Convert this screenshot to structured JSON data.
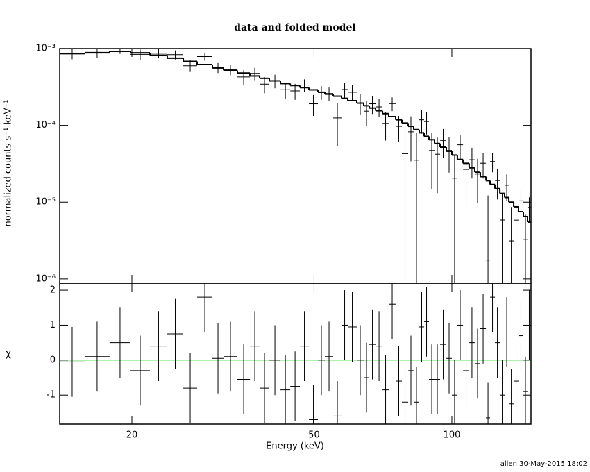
{
  "chart_data": {
    "type": "errorbar",
    "title": "data and folded model",
    "xlabel": "Energy (keV)",
    "footer": "allen 30-May-2015 18:02",
    "xscale": "log",
    "xlim": [
      13.91,
      148.9
    ],
    "xticks": [
      20,
      50,
      100
    ],
    "bins": [
      13.91,
      15.77,
      17.88,
      19.86,
      21.9,
      23.89,
      25.9,
      27.77,
      29.99,
      31.71,
      34.0,
      36.22,
      38.02,
      39.93,
      42.23,
      44.36,
      46.56,
      48.73,
      50.98,
      52.79,
      55.06,
      57.41,
      59.25,
      61.99,
      64.19,
      66.02,
      68.13,
      70.55,
      72.79,
      75.38,
      77.78,
      80.27,
      82.53,
      84.87,
      86.98,
      89.13,
      91.66,
      94.26,
      97.27,
      100.0,
      102.8,
      105.8,
      109.1,
      112.2,
      115.4,
      118.7,
      121.2,
      124.2,
      127.3,
      130.4,
      133.2,
      136.5,
      139.8,
      143.3,
      146.3,
      148.9
    ],
    "color": "#000000",
    "panels": [
      {
        "ylabel": "normalized counts s⁻¹ keV⁻¹",
        "yscale": "log",
        "ylim": [
          8.8e-07,
          0.001
        ],
        "yticks": [
          {
            "value": 0.001,
            "label": "10⁻³"
          },
          {
            "value": 0.0001,
            "label": "10⁻⁴"
          },
          {
            "value": 1e-05,
            "label": "10⁻⁵"
          },
          {
            "value": 1e-06,
            "label": "10⁻⁶"
          }
        ],
        "values": [
          0.000854,
          0.000893,
          0.000989,
          0.00084,
          0.000869,
          0.000834,
          0.000598,
          0.000787,
          0.000564,
          0.000528,
          0.000427,
          0.000475,
          0.000344,
          0.00038,
          0.000291,
          0.000281,
          0.000335,
          0.000191,
          0.00027,
          0.00026,
          0.000125,
          0.000293,
          0.00027,
          0.000195,
          0.000153,
          0.000191,
          0.000174,
          0.000106,
          0.000192,
          9.7e-05,
          4.28e-05,
          8.25e-05,
          3.52e-05,
          0.000118,
          0.000112,
          4.71e-05,
          4.21e-05,
          6.37e-05,
          4.72e-05,
          2.05e-05,
          5.58e-05,
          2.67e-05,
          3.57e-05,
          2.32e-05,
          3.21e-05,
          1.76e-06,
          3.38e-05,
          1.91e-05,
          5.85e-06,
          1.66e-05,
          3.13e-06,
          5.83e-06,
          1.04e-05,
          3.28e-06,
          8.53e-06
        ],
        "errors": [
          0.000129,
          0.000132,
          0.000138,
          0.000132,
          0.000123,
          0.0001125,
          0.000102,
          9.3e-05,
          8.4e-05,
          7.8e-05,
          9.6e-05,
          8.8e-05,
          8.2e-05,
          7.6e-05,
          7e-05,
          6.6e-05,
          6.2e-05,
          5.8e-05,
          5.4e-05,
          5.1e-05,
          7.2e-05,
          6.75e-05,
          6.3e-05,
          5.85e-05,
          5.4e-05,
          5.04e-05,
          4.65e-05,
          4.26e-05,
          3.9e-05,
          3.54e-05,
          5.35e-05,
          4.85e-05,
          4.4e-05,
          4e-05,
          3.6e-05,
          3.25e-05,
          2.9e-05,
          2.6e-05,
          2.3e-05,
          2.05e-05,
          1.98e-05,
          1.76e-05,
          1.54e-05,
          1.35e-05,
          1.18e-05,
          1.045e-05,
          9.35e-06,
          8.25e-06,
          7.15e-06,
          6.33e-06,
          5.5e-06,
          4.79e-06,
          4.13e-06,
          3.58e-06,
          3.03e-06
        ],
        "model": [
          0.00086,
          0.00088,
          0.00092,
          0.00088,
          0.00082,
          0.00075,
          0.00068,
          0.00062,
          0.00056,
          0.00052,
          0.00048,
          0.00044,
          0.00041,
          0.00038,
          0.00035,
          0.00033,
          0.00031,
          0.00029,
          0.00027,
          0.000255,
          0.00024,
          0.000225,
          0.00021,
          0.000195,
          0.00018,
          0.000168,
          0.000155,
          0.000142,
          0.00013,
          0.000118,
          0.000107,
          9.7e-05,
          8.8e-05,
          8e-05,
          7.2e-05,
          6.5e-05,
          5.8e-05,
          5.2e-05,
          4.6e-05,
          4.1e-05,
          3.6e-05,
          3.2e-05,
          2.8e-05,
          2.45e-05,
          2.15e-05,
          1.9e-05,
          1.7e-05,
          1.5e-05,
          1.3e-05,
          1.15e-05,
          1e-05,
          8.7e-06,
          7.5e-06,
          6.5e-06,
          5.5e-06
        ]
      },
      {
        "ylabel": "χ",
        "yscale": "linear",
        "ylim": [
          -1.83,
          2.2
        ],
        "yticks": [
          -1,
          0,
          1,
          2
        ],
        "values": [
          -0.05,
          0.1,
          0.5,
          -0.3,
          0.4,
          0.75,
          -0.8,
          1.8,
          0.05,
          0.1,
          -0.55,
          0.4,
          -0.8,
          0.0,
          -0.85,
          -0.75,
          0.4,
          -1.7,
          0.0,
          0.1,
          -1.6,
          1.0,
          0.95,
          0.0,
          -0.5,
          0.45,
          0.4,
          -0.85,
          1.6,
          -0.6,
          -1.2,
          -0.3,
          -1.2,
          0.95,
          1.1,
          -0.55,
          -0.55,
          0.45,
          0.05,
          -1.0,
          1.0,
          -0.3,
          0.5,
          -0.1,
          0.9,
          -1.65,
          1.8,
          0.5,
          -1.0,
          0.8,
          -1.25,
          -0.6,
          0.7,
          -0.9,
          1.0
        ],
        "errors": [
          1,
          1,
          1,
          1,
          1,
          1,
          1,
          1,
          1,
          1,
          1,
          1,
          1,
          1,
          1,
          1,
          1,
          1,
          1,
          1,
          1,
          1,
          1,
          1,
          1,
          1,
          1,
          1,
          1,
          1,
          1,
          1,
          1,
          1,
          1,
          1,
          1,
          1,
          1,
          1,
          1,
          1,
          1,
          1,
          1,
          1,
          1,
          1,
          1,
          1,
          1,
          1,
          1,
          1,
          1
        ],
        "hline": {
          "value": 0,
          "color": "#22dd22"
        }
      }
    ]
  }
}
